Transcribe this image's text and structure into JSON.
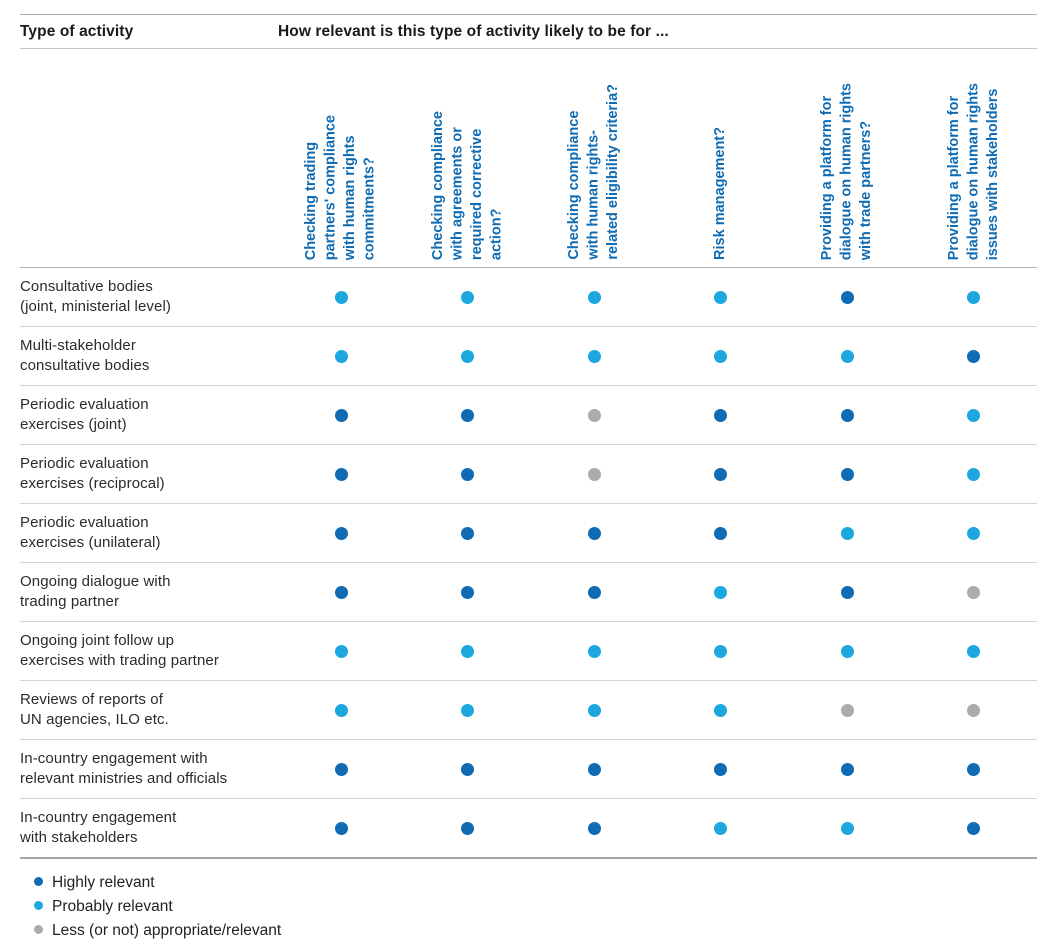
{
  "chart_data": {
    "type": "table",
    "title": "How relevant is this type of activity likely to be for ...",
    "row_header": "Type of activity",
    "columns": [
      "Checking trading partners' compliance with human rights commitments?",
      "Checking compliance with agreements or required corrective action?",
      "Checking compliance with human rights-related eligibility criteria?",
      "Risk management?",
      "Providing a platform for dialogue on human rights with trade partners?",
      "Providing a platform for dialogue on human rights issues with stakeholders"
    ],
    "rows": [
      "Consultative bodies (joint, ministerial level)",
      "Multi-stakeholder consultative bodies",
      "Periodic evaluation exercises (joint)",
      "Periodic evaluation exercises (reciprocal)",
      "Periodic evaluation exercises (unilateral)",
      "Ongoing dialogue with trading partner",
      "Ongoing joint follow up exercises with trading partner",
      "Reviews of reports of UN agencies, ILO etc.",
      "In-country engagement with relevant ministries and officials",
      "In-country engagement with stakeholders"
    ],
    "values": [
      [
        "P",
        "P",
        "P",
        "P",
        "H",
        "P"
      ],
      [
        "P",
        "P",
        "P",
        "P",
        "P",
        "H"
      ],
      [
        "H",
        "H",
        "L",
        "H",
        "H",
        "P"
      ],
      [
        "H",
        "H",
        "L",
        "H",
        "H",
        "P"
      ],
      [
        "H",
        "H",
        "H",
        "H",
        "P",
        "P"
      ],
      [
        "H",
        "H",
        "H",
        "P",
        "H",
        "L"
      ],
      [
        "P",
        "P",
        "P",
        "P",
        "P",
        "P"
      ],
      [
        "P",
        "P",
        "P",
        "P",
        "L",
        "L"
      ],
      [
        "H",
        "H",
        "H",
        "H",
        "H",
        "H"
      ],
      [
        "H",
        "H",
        "H",
        "P",
        "P",
        "H"
      ]
    ],
    "value_legend": {
      "H": "Highly relevant",
      "P": "Probably relevant",
      "L": "Less (or not) appropriate/relevant"
    },
    "legend_position": "bottom-left",
    "colors": {
      "H": "#0f6cb4",
      "P": "#1ca7df",
      "L": "#a9abae",
      "header_text": "#0f6cb4"
    }
  },
  "display": {
    "header": {
      "col1": "Type of activity",
      "col2": "How relevant is this type of activity likely to be for ..."
    },
    "columns": [
      "Checking trading\npartners' compliance\nwith human rights\ncommitments?",
      "Checking compliance\nwith agreements or\nrequired corrective\naction?",
      "Checking compliance\nwith human rights-\nrelated eligibility criteria?",
      "Risk management?",
      "Providing a platform for\ndialogue on human rights\nwith trade partners?",
      "Providing a platform for\ndialogue on human rights\nissues with stakeholders"
    ],
    "rows": [
      "Consultative bodies\n(joint, ministerial level)",
      "Multi-stakeholder\nconsultative bodies",
      "Periodic evaluation\nexercises (joint)",
      "Periodic evaluation\nexercises (reciprocal)",
      "Periodic evaluation\nexercises (unilateral)",
      "Ongoing dialogue with\ntrading partner",
      "Ongoing joint follow up\nexercises with trading partner",
      "Reviews of reports of\nUN agencies, ILO etc.",
      "In-country engagement with\nrelevant ministries and officials",
      "In-country engagement\nwith stakeholders"
    ],
    "legend": [
      {
        "level": "H",
        "label": "Highly relevant"
      },
      {
        "level": "P",
        "label": "Probably relevant"
      },
      {
        "level": "L",
        "label": "Less (or not) appropriate/relevant"
      }
    ]
  }
}
